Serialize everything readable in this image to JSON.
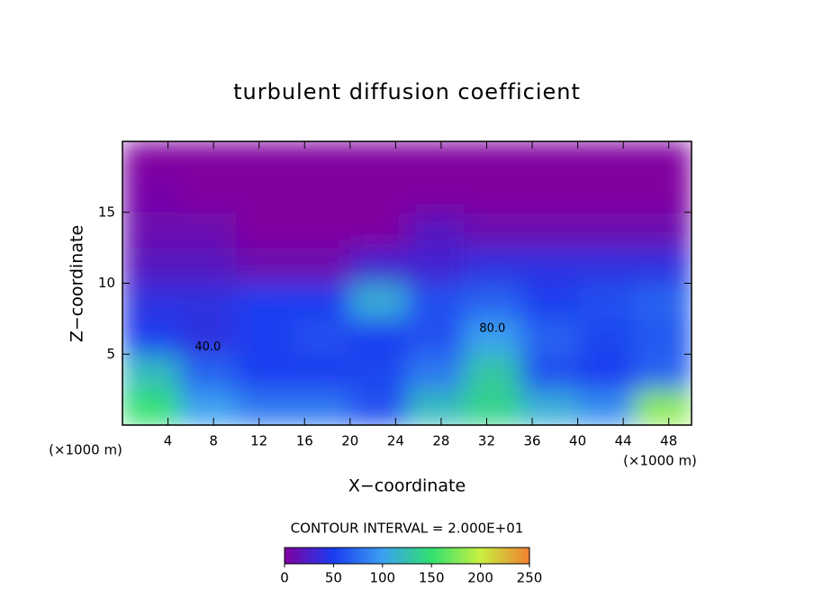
{
  "chart_data": {
    "type": "heatmap",
    "title": "turbulent diffusion coefficient",
    "x_label": "X−coordinate",
    "y_label": "Z−coordinate",
    "x_unit": "(×1000 m)",
    "y_unit": "(×1000 m)",
    "contour_note": "CONTOUR INTERVAL = 2.000E+01",
    "xlim": [
      0,
      50
    ],
    "ylim": [
      0,
      20
    ],
    "xticks": [
      4,
      8,
      12,
      16,
      20,
      24,
      28,
      32,
      36,
      40,
      44,
      48
    ],
    "yticks": [
      5,
      10,
      15
    ],
    "x": [
      2.5,
      7.5,
      12.5,
      17.5,
      22.5,
      27.5,
      32.5,
      37.5,
      42.5,
      47.5
    ],
    "y": [
      1.25,
      3.75,
      6.25,
      8.75,
      11.25,
      13.75,
      16.25,
      18.75
    ],
    "z": [
      [
        150,
        100,
        80,
        80,
        60,
        120,
        140,
        110,
        90,
        180
      ],
      [
        120,
        70,
        50,
        50,
        55,
        80,
        130,
        60,
        50,
        70
      ],
      [
        50,
        40,
        50,
        60,
        50,
        60,
        100,
        70,
        55,
        65
      ],
      [
        40,
        40,
        50,
        50,
        110,
        60,
        70,
        50,
        60,
        70
      ],
      [
        20,
        20,
        10,
        10,
        30,
        30,
        40,
        40,
        40,
        40
      ],
      [
        10,
        10,
        0,
        0,
        0,
        20,
        10,
        10,
        10,
        10
      ],
      [
        5,
        0,
        0,
        0,
        0,
        0,
        0,
        0,
        0,
        0
      ],
      [
        0,
        0,
        0,
        0,
        0,
        0,
        0,
        0,
        0,
        0
      ]
    ],
    "clim": [
      0,
      250
    ],
    "colorscale": [
      "#8000a0",
      "#1a3cf0",
      "#3aa0f0",
      "#30e070",
      "#c8f040",
      "#f08030"
    ],
    "cbar_ticks": [
      0,
      50,
      100,
      150,
      200,
      250
    ],
    "annotations": [
      {
        "text": "80.0",
        "x": 32.5,
        "y": 6.8
      },
      {
        "text": "40.0",
        "x": 7.5,
        "y": 5.5
      }
    ]
  }
}
